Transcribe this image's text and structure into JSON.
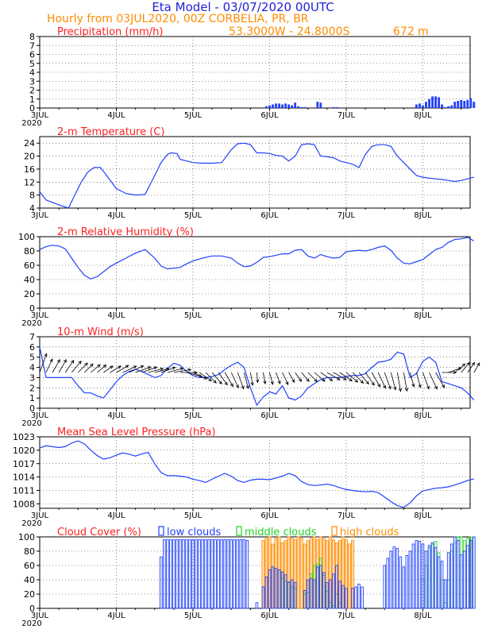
{
  "header": {
    "title": "Eta Model - 03/07/2020 00UTC",
    "subtitle": "Hourly from 03JUL2020, 00Z   CORBELIA, PR, BR",
    "coords": "53.3000W - 24.8000S",
    "elevation": "672  m"
  },
  "colors": {
    "title": "#1f1fd6",
    "subtitle": "#ff8c00",
    "panel_title": "#ff2020",
    "line": "#2040ff",
    "axis": "#000000",
    "low": "#2040ff",
    "middle": "#20d020",
    "high": "#ff8c00"
  },
  "chart_data": [
    {
      "type": "bar",
      "title": "Precipitation (mm/h)",
      "ylim": [
        0,
        8
      ],
      "yticks": [
        "0",
        "1",
        "2",
        "3",
        "4",
        "5",
        "6",
        "7",
        "8"
      ],
      "xticks": [
        "3JUL",
        "4JUL",
        "5JUL",
        "6JUL",
        "7JUL",
        "8JUL"
      ],
      "year_label": "2020",
      "x_hours": [
        71,
        72,
        73,
        74,
        75,
        76,
        77,
        78,
        79,
        80,
        81,
        82,
        83,
        87,
        88,
        92,
        93,
        118,
        119,
        120,
        121,
        122,
        123,
        124,
        125,
        126,
        127,
        128,
        129,
        130,
        131,
        132,
        133,
        134,
        135,
        136
      ],
      "values": [
        0.2,
        0.3,
        0.4,
        0.5,
        0.5,
        0.4,
        0.5,
        0.4,
        0.3,
        0.6,
        0.2,
        0.1,
        0.1,
        0.7,
        0.6,
        0.1,
        0.1,
        0.4,
        0.5,
        0.3,
        0.7,
        1.0,
        1.3,
        1.3,
        1.2,
        0.4,
        0.1,
        0.2,
        0.3,
        0.7,
        0.8,
        0.9,
        0.8,
        0.9,
        1.1,
        0.7
      ]
    },
    {
      "type": "line",
      "title": "2-m Temperature (C)",
      "ylim": [
        4,
        26
      ],
      "yticks": [
        "4",
        "8",
        "12",
        "16",
        "20",
        "24"
      ],
      "xticks": [
        "3JUL",
        "4JUL",
        "5JUL",
        "6JUL",
        "7JUL",
        "8JUL"
      ],
      "year_label": "",
      "x": [
        0,
        2,
        6,
        9,
        11,
        13,
        15,
        17,
        19,
        21,
        24,
        27,
        30,
        33,
        36,
        38,
        40,
        41,
        43,
        44,
        46,
        48,
        51,
        54,
        57,
        60,
        62,
        64,
        66,
        68,
        70,
        72,
        74,
        76,
        78,
        80,
        82,
        84,
        86,
        88,
        90,
        92,
        94,
        96,
        98,
        100,
        102,
        104,
        106,
        108,
        110,
        112,
        114,
        116,
        118,
        120,
        122,
        124,
        126,
        128,
        130,
        132,
        134,
        136
      ],
      "y": [
        9,
        6.5,
        5,
        4,
        8,
        12,
        15,
        16.5,
        16.5,
        14,
        10,
        8.5,
        8,
        8.2,
        14,
        18,
        20.5,
        21,
        20.8,
        19,
        18.5,
        18,
        17.8,
        17.8,
        18,
        22,
        23.8,
        24,
        23.5,
        21,
        21,
        20.8,
        20.2,
        20,
        18.5,
        20,
        23.5,
        23.8,
        23.5,
        20,
        19.8,
        19.5,
        18.5,
        18,
        17.5,
        16.5,
        20.5,
        23,
        23.5,
        23.5,
        23,
        20,
        18,
        16,
        14,
        13.5,
        13.2,
        13,
        12.8,
        12.5,
        12.2,
        12.5,
        13,
        13.5
      ]
    },
    {
      "type": "line",
      "title": "2-m Relative Humidity (%)",
      "ylim": [
        0,
        100
      ],
      "yticks": [
        "0",
        "20",
        "40",
        "60",
        "80",
        "100"
      ],
      "xticks": [
        "3JUL",
        "4JUL",
        "5JUL",
        "6JUL",
        "7JUL",
        "8JUL"
      ],
      "year_label": "2020",
      "x": [
        0,
        2,
        4,
        6,
        8,
        10,
        12,
        14,
        16,
        18,
        20,
        22,
        24,
        27,
        30,
        33,
        36,
        38,
        40,
        42,
        44,
        46,
        48,
        51,
        54,
        57,
        60,
        62,
        64,
        66,
        68,
        70,
        72,
        74,
        76,
        78,
        80,
        82,
        84,
        86,
        88,
        90,
        92,
        94,
        96,
        98,
        100,
        102,
        104,
        106,
        108,
        110,
        112,
        114,
        116,
        118,
        120,
        122,
        124,
        126,
        128,
        130,
        132,
        134,
        136
      ],
      "y": [
        82,
        86,
        88,
        87,
        83,
        70,
        57,
        46,
        41,
        44,
        51,
        58,
        63,
        70,
        77,
        82,
        70,
        59,
        55,
        56,
        57,
        62,
        66,
        70,
        73,
        73,
        70,
        63,
        58,
        59,
        64,
        71,
        72,
        74,
        76,
        76,
        81,
        82,
        73,
        70,
        75,
        72,
        70,
        71,
        79,
        80,
        81,
        80,
        82,
        85,
        87,
        81,
        70,
        63,
        62,
        65,
        68,
        75,
        82,
        85,
        92,
        96,
        97,
        99,
        94
      ]
    },
    {
      "type": "line",
      "title": "10-m Wind (m/s)",
      "ylim": [
        0,
        7
      ],
      "yticks": [
        "0",
        "1",
        "2",
        "3",
        "4",
        "5",
        "6",
        "7"
      ],
      "xticks": [
        "3JUL",
        "4JUL",
        "5JUL",
        "6JUL",
        "7JUL",
        "8JUL"
      ],
      "year_label": "2020",
      "x": [
        0,
        2,
        4,
        6,
        8,
        10,
        12,
        14,
        16,
        18,
        20,
        22,
        24,
        26,
        28,
        30,
        32,
        34,
        36,
        38,
        40,
        42,
        44,
        46,
        48,
        50,
        52,
        54,
        56,
        58,
        60,
        62,
        64,
        66,
        68,
        70,
        72,
        74,
        76,
        78,
        80,
        82,
        84,
        86,
        88,
        90,
        92,
        94,
        96,
        98,
        100,
        102,
        104,
        106,
        108,
        110,
        112,
        114,
        116,
        118,
        120,
        122,
        124,
        126,
        128,
        130,
        132,
        134,
        136
      ],
      "y": [
        6,
        3,
        3,
        3,
        3,
        3,
        2.2,
        1.5,
        1.5,
        1.2,
        1.0,
        1.8,
        2.6,
        3.2,
        3.6,
        3.8,
        3.6,
        3.3,
        3.0,
        3.2,
        3.9,
        4.4,
        4.2,
        3.6,
        3.2,
        3.0,
        3.0,
        3.1,
        3.3,
        3.8,
        4.2,
        4.5,
        4.0,
        2.0,
        0.3,
        1.1,
        1.6,
        1.4,
        2.2,
        1.0,
        0.8,
        1.2,
        2.0,
        2.4,
        2.8,
        3.0,
        3.0,
        3.0,
        3.1,
        3.2,
        3.2,
        3.4,
        4.0,
        4.5,
        4.6,
        4.8,
        5.5,
        5.3,
        3.0,
        3.4,
        4.6,
        5.0,
        4.5,
        2.6,
        2.4,
        2.2,
        2.0,
        1.5,
        0.8
      ],
      "arrows": {
        "hours": [
          0,
          2,
          4,
          6,
          8,
          10,
          12,
          14,
          16,
          18,
          20,
          22,
          24,
          26,
          28,
          30,
          32,
          34,
          36,
          38,
          40,
          42,
          44,
          46,
          48,
          50,
          52,
          54,
          56,
          58,
          60,
          62,
          64,
          66,
          68,
          70,
          72,
          74,
          76,
          78,
          80,
          82,
          84,
          86,
          88,
          90,
          92,
          94,
          96,
          98,
          100,
          102,
          104,
          106,
          108,
          110,
          112,
          114,
          116,
          118,
          120,
          122,
          124,
          126,
          128,
          130,
          132,
          134,
          136
        ],
        "directions": [
          200,
          205,
          210,
          210,
          215,
          220,
          225,
          225,
          230,
          230,
          235,
          240,
          240,
          245,
          245,
          250,
          250,
          255,
          255,
          250,
          255,
          260,
          270,
          285,
          295,
          305,
          315,
          320,
          325,
          330,
          335,
          340,
          345,
          350,
          355,
          350,
          345,
          340,
          335,
          330,
          325,
          320,
          315,
          310,
          305,
          300,
          300,
          305,
          310,
          315,
          320,
          325,
          330,
          335,
          340,
          345,
          350,
          350,
          345,
          345,
          340,
          335,
          330,
          270,
          250,
          230,
          220,
          215,
          210
        ]
      }
    },
    {
      "type": "line",
      "title": "Mean Sea Level Pressure (hPa)",
      "ylim": [
        1007,
        1023
      ],
      "yticks": [
        "1008",
        "1011",
        "1014",
        "1017",
        "1020",
        "1023"
      ],
      "xticks": [
        "3JUL",
        "4JUL",
        "5JUL",
        "6JUL",
        "7JUL",
        "8JUL"
      ],
      "year_label": "2020",
      "x": [
        0,
        2,
        4,
        6,
        8,
        10,
        12,
        14,
        16,
        18,
        20,
        22,
        24,
        26,
        28,
        30,
        32,
        34,
        36,
        38,
        40,
        42,
        44,
        46,
        48,
        50,
        52,
        54,
        56,
        58,
        60,
        62,
        64,
        66,
        68,
        70,
        72,
        74,
        76,
        78,
        80,
        82,
        84,
        86,
        88,
        90,
        92,
        94,
        96,
        98,
        100,
        102,
        104,
        106,
        108,
        110,
        112,
        114,
        116,
        118,
        120,
        122,
        124,
        126,
        128,
        130,
        132,
        134,
        136
      ],
      "y": [
        1020.5,
        1021,
        1020.8,
        1020.6,
        1020.8,
        1021.6,
        1022.1,
        1021.4,
        1020,
        1018.8,
        1018,
        1018.3,
        1018.9,
        1019.4,
        1019.1,
        1018.7,
        1019.2,
        1019.5,
        1017,
        1015,
        1014.3,
        1014.3,
        1014.2,
        1014,
        1013.5,
        1013.2,
        1012.8,
        1013.5,
        1014.2,
        1014.8,
        1014.2,
        1013.2,
        1012.8,
        1013.3,
        1013.5,
        1013.5,
        1013.4,
        1013.8,
        1014.2,
        1014.8,
        1014.3,
        1013,
        1012.3,
        1012.1,
        1012.2,
        1012.4,
        1012.1,
        1011.6,
        1011.2,
        1011,
        1010.8,
        1010.7,
        1010.8,
        1010.5,
        1009.5,
        1008.5,
        1007.6,
        1007.2,
        1008.2,
        1009.8,
        1010.9,
        1011.2,
        1011.5,
        1011.6,
        1011.8,
        1012.2,
        1012.7,
        1013.2,
        1013.6
      ]
    },
    {
      "type": "bar",
      "title": "Cloud Cover (%)",
      "ylim": [
        0,
        100
      ],
      "yticks": [
        "0",
        "20",
        "40",
        "60",
        "80",
        "100"
      ],
      "xticks": [
        "3JUL",
        "4JUL",
        "5JUL",
        "6JUL",
        "7JUL",
        "8JUL"
      ],
      "year_label": "2020",
      "legend": [
        "low clouds",
        "middle clouds",
        "high clouds"
      ],
      "series": [
        {
          "name": "low clouds",
          "hours": [
            38,
            39,
            40,
            41,
            42,
            43,
            44,
            45,
            46,
            47,
            48,
            49,
            50,
            51,
            52,
            53,
            54,
            55,
            56,
            57,
            58,
            59,
            60,
            61,
            62,
            63,
            64,
            65,
            68,
            70,
            71,
            72,
            73,
            74,
            75,
            76,
            77,
            78,
            79,
            80,
            83,
            84,
            85,
            86,
            87,
            88,
            89,
            90,
            91,
            92,
            93,
            94,
            95,
            96,
            98,
            99,
            100,
            101,
            108,
            109,
            110,
            111,
            112,
            113,
            114,
            115,
            116,
            117,
            118,
            119,
            120,
            121,
            122,
            123,
            124,
            125,
            126,
            127,
            128,
            129,
            130,
            131,
            132,
            133,
            134,
            135,
            136
          ],
          "values": [
            72,
            96,
            96,
            96,
            96,
            96,
            96,
            96,
            96,
            96,
            96,
            96,
            96,
            96,
            96,
            96,
            96,
            96,
            96,
            96,
            96,
            96,
            96,
            96,
            96,
            96,
            96,
            95,
            8,
            30,
            44,
            54,
            58,
            56,
            54,
            51,
            47,
            37,
            40,
            36,
            25,
            40,
            42,
            40,
            58,
            60,
            50,
            36,
            40,
            48,
            60,
            38,
            32,
            28,
            28,
            30,
            34,
            30,
            60,
            70,
            80,
            86,
            84,
            72,
            58,
            74,
            80,
            90,
            95,
            94,
            90,
            80,
            88,
            92,
            85,
            72,
            66,
            40,
            78,
            90,
            100,
            95,
            75,
            80,
            88,
            95,
            100
          ]
        },
        {
          "name": "middle clouds",
          "hours": [
            76,
            77,
            78,
            79,
            80,
            83,
            84,
            85,
            86,
            87,
            88,
            89,
            90,
            91,
            92,
            93,
            94,
            120,
            121,
            122,
            123,
            124,
            125,
            126,
            127,
            128,
            129,
            130,
            131,
            132,
            133,
            134,
            135,
            136
          ],
          "values": [
            42,
            38,
            36,
            30,
            28,
            20,
            22,
            48,
            60,
            62,
            70,
            46,
            24,
            8,
            4,
            20,
            8,
            40,
            60,
            85,
            90,
            94,
            78,
            40,
            8,
            40,
            80,
            92,
            100,
            100,
            95,
            98,
            100,
            100
          ]
        },
        {
          "name": "high clouds",
          "hours": [
            70,
            71,
            72,
            73,
            74,
            75,
            76,
            77,
            78,
            79,
            80,
            81,
            82,
            83,
            84,
            85,
            86,
            87,
            88,
            89,
            90,
            91,
            92,
            93,
            94,
            95,
            96,
            97,
            98
          ],
          "values": [
            95,
            98,
            100,
            90,
            98,
            100,
            92,
            95,
            100,
            98,
            96,
            100,
            98,
            90,
            95,
            98,
            100,
            96,
            100,
            98,
            95,
            100,
            96,
            92,
            95,
            100,
            96,
            90,
            95
          ]
        }
      ]
    }
  ]
}
